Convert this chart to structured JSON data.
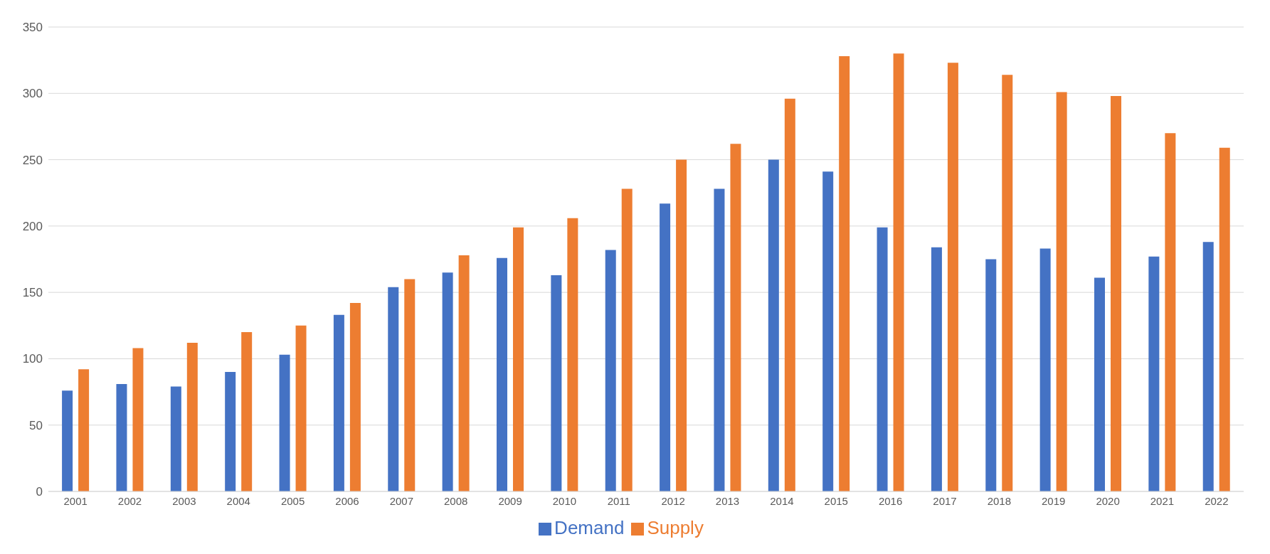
{
  "chart_data": {
    "type": "bar",
    "categories": [
      "2001",
      "2002",
      "2003",
      "2004",
      "2005",
      "2006",
      "2007",
      "2008",
      "2009",
      "2010",
      "2011",
      "2012",
      "2013",
      "2014",
      "2015",
      "2016",
      "2017",
      "2018",
      "2019",
      "2020",
      "2021",
      "2022"
    ],
    "series": [
      {
        "name": "Demand",
        "color": "#4472c4",
        "values": [
          76,
          81,
          79,
          90,
          103,
          133,
          154,
          165,
          176,
          163,
          182,
          217,
          228,
          250,
          241,
          199,
          184,
          175,
          183,
          161,
          177,
          188
        ]
      },
      {
        "name": "Supply",
        "color": "#ed7d31",
        "values": [
          92,
          108,
          112,
          120,
          125,
          142,
          160,
          178,
          199,
          206,
          228,
          250,
          262,
          296,
          328,
          330,
          323,
          314,
          301,
          298,
          270,
          259
        ]
      }
    ],
    "ylim": [
      0,
      350
    ],
    "yticks": [
      0,
      50,
      100,
      150,
      200,
      250,
      300,
      350
    ],
    "grid": "y",
    "legend": "bottom"
  }
}
